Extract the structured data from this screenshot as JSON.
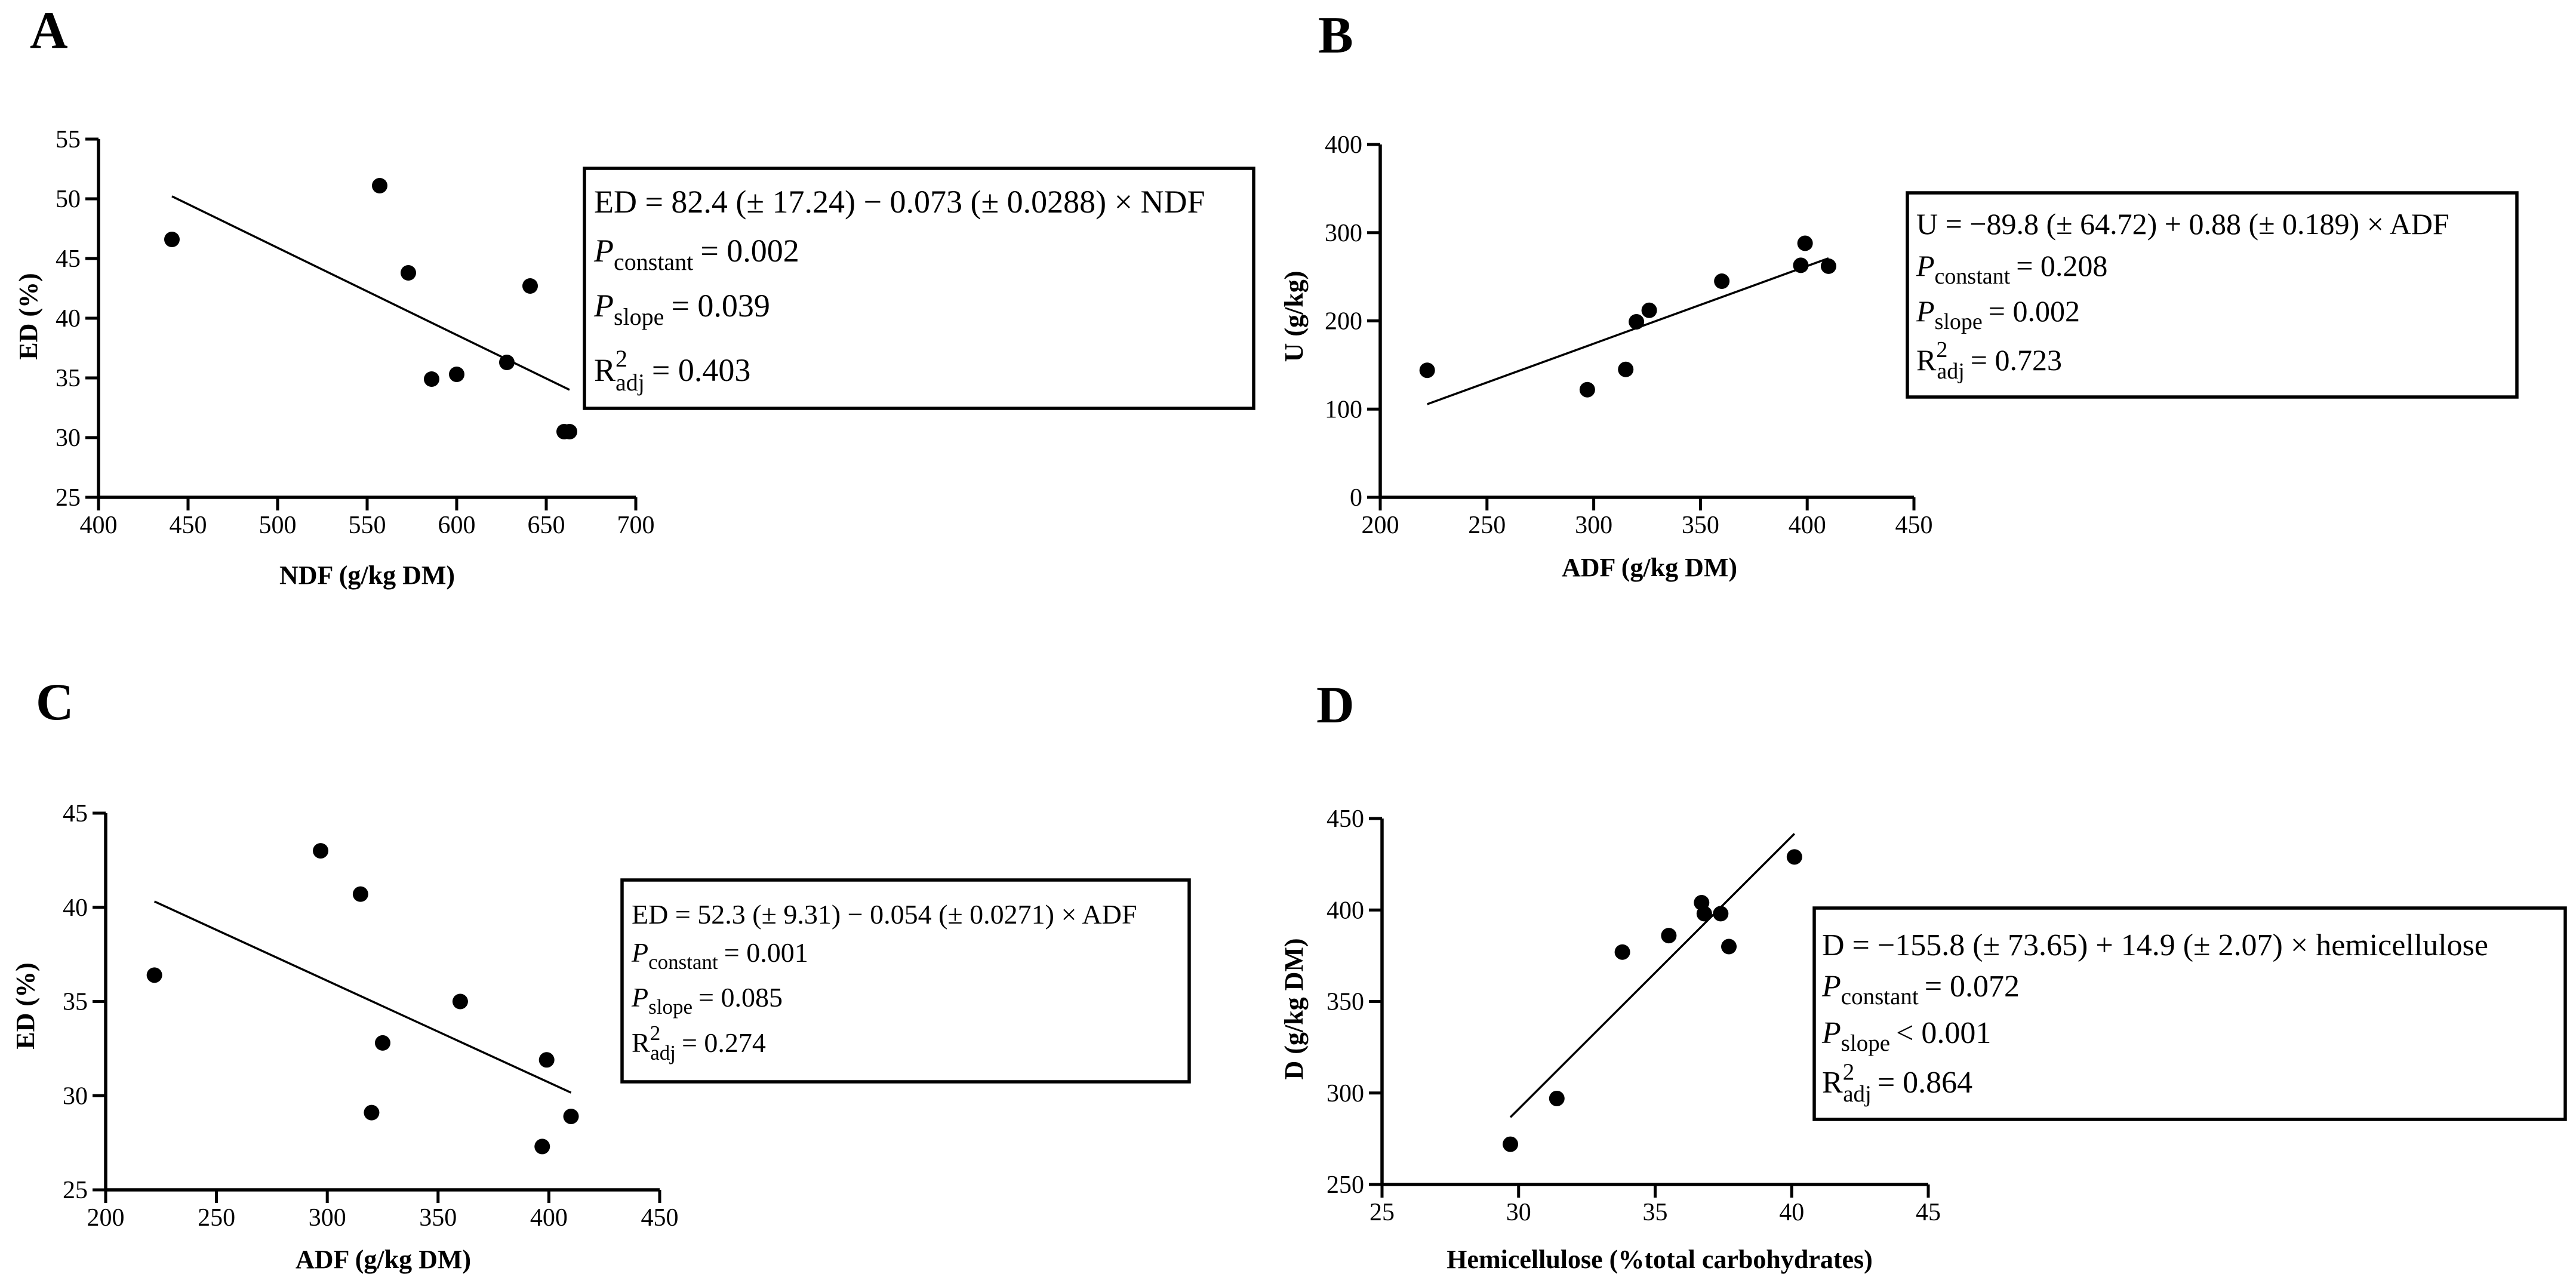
{
  "chart_data": [
    {
      "type": "scatter",
      "panel": "A",
      "xlabel": "NDF (g/kg DM)",
      "ylabel": "ED (%)",
      "xlim": [
        400,
        700
      ],
      "ylim": [
        25,
        55
      ],
      "xticks": [
        400,
        450,
        500,
        550,
        600,
        650,
        700
      ],
      "yticks": [
        25,
        30,
        35,
        40,
        45,
        50,
        55
      ],
      "points": [
        {
          "x": 441,
          "y": 46.6
        },
        {
          "x": 557,
          "y": 51.1
        },
        {
          "x": 573,
          "y": 43.8
        },
        {
          "x": 586,
          "y": 34.9
        },
        {
          "x": 600,
          "y": 35.3
        },
        {
          "x": 628,
          "y": 36.3
        },
        {
          "x": 641,
          "y": 42.7
        },
        {
          "x": 660,
          "y": 30.5
        },
        {
          "x": 663,
          "y": 30.5
        }
      ],
      "fit": {
        "intercept": 82.4,
        "slope": -0.073,
        "x_range": [
          441,
          663
        ]
      },
      "legend": "right",
      "equation": {
        "line1": "ED = 82.4 (± 17.24) − 0.073 (± 0.0288) × NDF",
        "p_constant": "= 0.002",
        "p_slope": "= 0.039",
        "r2": "= 0.403"
      }
    },
    {
      "type": "scatter",
      "panel": "B",
      "xlabel": "ADF (g/kg DM)",
      "ylabel": "U (g/kg)",
      "xlim": [
        200,
        450
      ],
      "ylim": [
        0,
        400
      ],
      "xticks": [
        200,
        250,
        300,
        350,
        400,
        450
      ],
      "yticks": [
        0,
        100,
        200,
        300,
        400
      ],
      "points": [
        {
          "x": 222,
          "y": 144
        },
        {
          "x": 297,
          "y": 122
        },
        {
          "x": 315,
          "y": 145
        },
        {
          "x": 320,
          "y": 199
        },
        {
          "x": 326,
          "y": 212
        },
        {
          "x": 360,
          "y": 245
        },
        {
          "x": 397,
          "y": 263
        },
        {
          "x": 399,
          "y": 288
        },
        {
          "x": 410,
          "y": 262
        }
      ],
      "fit": {
        "intercept": -89.8,
        "slope": 0.88,
        "x_range": [
          222,
          410
        ]
      },
      "legend": "right",
      "equation": {
        "line1": "U = −89.8 (± 64.72) + 0.88 (± 0.189) × ADF",
        "p_constant": "= 0.208",
        "p_slope": "= 0.002",
        "r2": "= 0.723"
      }
    },
    {
      "type": "scatter",
      "panel": "C",
      "xlabel": "ADF (g/kg DM)",
      "ylabel": "ED (%)",
      "xlim": [
        200,
        450
      ],
      "ylim": [
        25,
        45
      ],
      "xticks": [
        200,
        250,
        300,
        350,
        400,
        450
      ],
      "yticks": [
        25,
        30,
        35,
        40,
        45
      ],
      "points": [
        {
          "x": 222,
          "y": 36.4
        },
        {
          "x": 297,
          "y": 43.0
        },
        {
          "x": 315,
          "y": 40.7
        },
        {
          "x": 320,
          "y": 29.1
        },
        {
          "x": 325,
          "y": 32.8
        },
        {
          "x": 360,
          "y": 35.0
        },
        {
          "x": 397,
          "y": 27.3
        },
        {
          "x": 399,
          "y": 31.9
        },
        {
          "x": 410,
          "y": 28.9
        }
      ],
      "fit": {
        "intercept": 52.3,
        "slope": -0.054,
        "x_range": [
          222,
          410
        ]
      },
      "legend": "right",
      "equation": {
        "line1": "ED = 52.3 (± 9.31) − 0.054 (± 0.0271) × ADF",
        "p_constant": "= 0.001",
        "p_slope": "= 0.085",
        "r2": "= 0.274"
      }
    },
    {
      "type": "scatter",
      "panel": "D",
      "xlabel": "Hemicellulose (%total carbohydrates)",
      "ylabel": "D (g/kg DM)",
      "xlim": [
        25,
        45
      ],
      "ylim": [
        250,
        450
      ],
      "xticks": [
        25,
        30,
        35,
        40,
        45
      ],
      "yticks": [
        250,
        300,
        350,
        400,
        450
      ],
      "points": [
        {
          "x": 29.7,
          "y": 272
        },
        {
          "x": 31.4,
          "y": 297
        },
        {
          "x": 33.8,
          "y": 377
        },
        {
          "x": 35.5,
          "y": 386
        },
        {
          "x": 36.7,
          "y": 404
        },
        {
          "x": 36.8,
          "y": 398
        },
        {
          "x": 37.4,
          "y": 398
        },
        {
          "x": 37.7,
          "y": 380
        },
        {
          "x": 40.1,
          "y": 429
        }
      ],
      "fit": {
        "intercept": -155.8,
        "slope": 14.9,
        "x_range": [
          29.7,
          40.1
        ]
      },
      "legend": "right",
      "equation": {
        "line1": "D = −155.8 (± 73.65) + 14.9 (± 2.07) × hemicellulose",
        "p_constant": "= 0.072",
        "p_slope": "< 0.001",
        "r2": "= 0.864"
      }
    }
  ],
  "labels": {
    "p": "P",
    "constant_sub": "constant",
    "slope_sub": "slope",
    "r": "R",
    "r_sup": "2",
    "adj_sub": "adj"
  }
}
